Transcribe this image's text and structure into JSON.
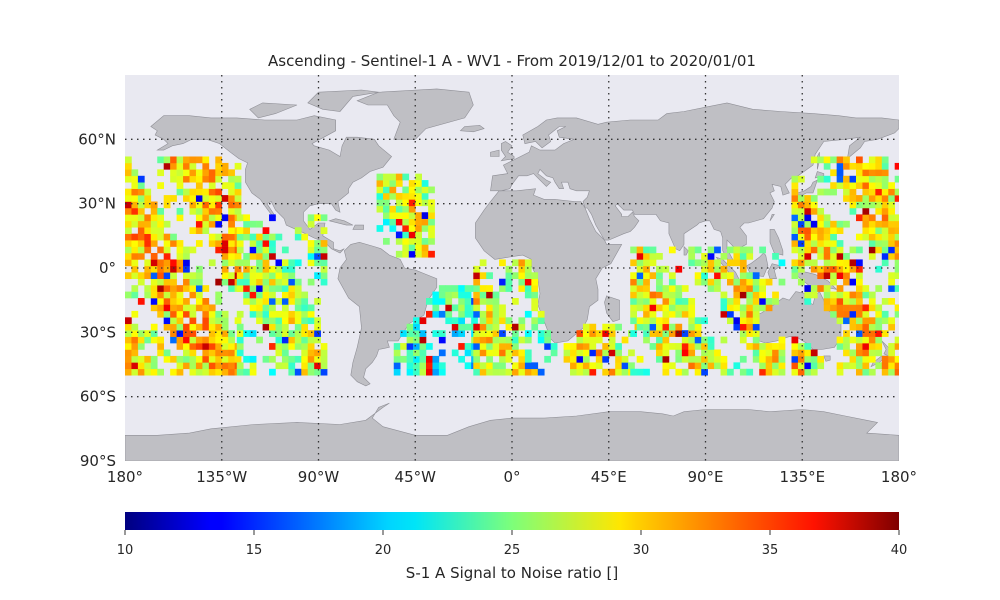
{
  "title": "Ascending - Sentinel-1 A - WV1 - From 2019/12/01 to 2020/01/01",
  "map": {
    "projection": "plate-carree",
    "lon_range": [
      -180,
      180
    ],
    "lat_range": [
      -90,
      90
    ],
    "ocean_color": "#e9e9f1",
    "land_color": "#bfbfc4",
    "grid_style": "dotted",
    "lon_ticks": [
      {
        "value": -180,
        "label": "180°"
      },
      {
        "value": -135,
        "label": "135°W"
      },
      {
        "value": -90,
        "label": "90°W"
      },
      {
        "value": -45,
        "label": "45°W"
      },
      {
        "value": 0,
        "label": "0°"
      },
      {
        "value": 45,
        "label": "45°E"
      },
      {
        "value": 90,
        "label": "90°E"
      },
      {
        "value": 135,
        "label": "135°E"
      },
      {
        "value": 180,
        "label": "180°"
      }
    ],
    "lat_ticks": [
      {
        "value": 60,
        "label": "60°N"
      },
      {
        "value": 30,
        "label": "30°N"
      },
      {
        "value": 0,
        "label": "0°"
      },
      {
        "value": -30,
        "label": "30°S"
      },
      {
        "value": -60,
        "label": "60°S"
      },
      {
        "value": -90,
        "label": "90°S"
      }
    ]
  },
  "chart_data": {
    "type": "heatmap",
    "description_units": "S-1 A Signal to Noise ratio []",
    "grid_spacing_deg": 3,
    "snr_coverage_regions": [
      {
        "lon": [
          -180,
          -128
        ],
        "lat": [
          -50,
          50
        ],
        "mean_snr": 29
      },
      {
        "lon": [
          -128,
          -88
        ],
        "lat": [
          -50,
          25
        ],
        "mean_snr": 26
      },
      {
        "lon": [
          -63,
          -38
        ],
        "lat": [
          5,
          42
        ],
        "mean_snr": 26
      },
      {
        "lon": [
          -55,
          -18
        ],
        "lat": [
          -50,
          -10
        ],
        "mean_snr": 22
      },
      {
        "lon": [
          -18,
          20
        ],
        "lat": [
          -50,
          2
        ],
        "mean_snr": 27
      },
      {
        "lon": [
          24,
          60
        ],
        "lat": [
          -50,
          -28
        ],
        "mean_snr": 28
      },
      {
        "lon": [
          55,
          125
        ],
        "lat": [
          -50,
          10
        ],
        "mean_snr": 27
      },
      {
        "lon": [
          130,
          180
        ],
        "lat": [
          -50,
          50
        ],
        "mean_snr": 28
      }
    ],
    "colorbar": {
      "colormap": "jet",
      "range": [
        10,
        40
      ],
      "ticks": [
        10,
        15,
        20,
        25,
        30,
        35,
        40
      ],
      "label": "S-1 A Signal to Noise ratio []"
    }
  }
}
